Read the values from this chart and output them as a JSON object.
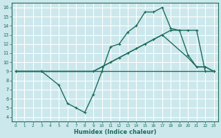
{
  "xlabel": "Humidex (Indice chaleur)",
  "bg_color": "#cce8ec",
  "grid_color": "#ffffff",
  "line_color": "#1a6b5a",
  "xlim": [
    -0.5,
    23.5
  ],
  "ylim": [
    3.5,
    16.5
  ],
  "xticks": [
    0,
    1,
    2,
    3,
    4,
    5,
    6,
    7,
    8,
    9,
    10,
    11,
    12,
    13,
    14,
    15,
    16,
    17,
    18,
    19,
    20,
    21,
    22,
    23
  ],
  "yticks": [
    4,
    5,
    6,
    7,
    8,
    9,
    10,
    11,
    12,
    13,
    14,
    15,
    16
  ],
  "line1_x": [
    0,
    23
  ],
  "line1_y": [
    9,
    9
  ],
  "line2_x": [
    0,
    3,
    9,
    17,
    20,
    21,
    22,
    23
  ],
  "line2_y": [
    9,
    9,
    9,
    13,
    10.5,
    9.5,
    9.5,
    9
  ],
  "line3_x": [
    0,
    3,
    9,
    10,
    11,
    12,
    13,
    14,
    15,
    16,
    17,
    18,
    19,
    20,
    21,
    22,
    23
  ],
  "line3_y": [
    9,
    9,
    9,
    9.5,
    10,
    10.5,
    11,
    11.5,
    12,
    12.5,
    13,
    13.5,
    13.5,
    13.5,
    13.5,
    9,
    9
  ],
  "line4_x": [
    0,
    3,
    5,
    6,
    7,
    8,
    9,
    10,
    11,
    12,
    13,
    14,
    15,
    16,
    17,
    18,
    19,
    20,
    21,
    22,
    23
  ],
  "line4_y": [
    9,
    9,
    7.5,
    5.5,
    5,
    4.5,
    6.5,
    9,
    11.7,
    12,
    13.3,
    14,
    15.5,
    15.5,
    16,
    13.7,
    13.5,
    10.8,
    9.5,
    9.5,
    9
  ]
}
